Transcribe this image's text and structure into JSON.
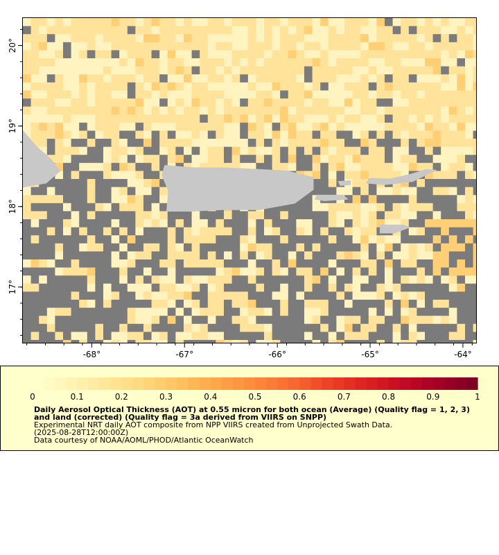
{
  "map": {
    "lon_ticks": [
      "-68°",
      "-67°",
      "-66°",
      "-65°",
      "-64°"
    ],
    "lon_values": [
      -68,
      -67,
      -66,
      -65,
      -64
    ],
    "lat_ticks": [
      "20°",
      "19°",
      "18°",
      "17°"
    ],
    "lat_values": [
      20,
      19,
      18,
      17
    ],
    "lon_range": [
      -68.75,
      -63.85
    ],
    "lat_range": [
      16.3,
      20.35
    ],
    "colors": {
      "nodata": "#7b7b7b",
      "land": "#c8c8c8",
      "aot_low": "#fff3c0",
      "aot_mid": "#ffe39a",
      "aot_high": "#ffcf75"
    },
    "islands": [
      "Hispaniola",
      "Puerto Rico",
      "Vieques",
      "Culebra",
      "Virgin Islands",
      "St. Croix"
    ]
  },
  "legend": {
    "ticks": [
      "0",
      "0.1",
      "0.2",
      "0.3",
      "0.4",
      "0.5",
      "0.6",
      "0.7",
      "0.8",
      "0.9",
      "1"
    ],
    "tick_values": [
      0,
      0.1,
      0.2,
      0.3,
      0.4,
      0.5,
      0.6,
      0.7,
      0.8,
      0.9,
      1
    ],
    "colormap": [
      "#ffffcc",
      "#fff2b0",
      "#ffe595",
      "#ffd57a",
      "#febf5c",
      "#fea446",
      "#fd8a3c",
      "#f86b31",
      "#ee4327",
      "#de2321",
      "#c70c25",
      "#a80026",
      "#800026"
    ],
    "title": "Daily Aerosol Optical Thickness (AOT) at 0.55 micron for both ocean (Average) (Quality flag = 1, 2, 3) and land (corrected) (Quality flag = 3a derived from VIIRS on SNPP)",
    "description": "Experimental NRT daily AOT composite from NPP VIIRS created from Unprojected Swath Data.",
    "date": "(2025-08-28T12:00:00Z)",
    "credit": "Data courtesy of NOAA/AOML/PHOD/Atlantic OceanWatch"
  }
}
